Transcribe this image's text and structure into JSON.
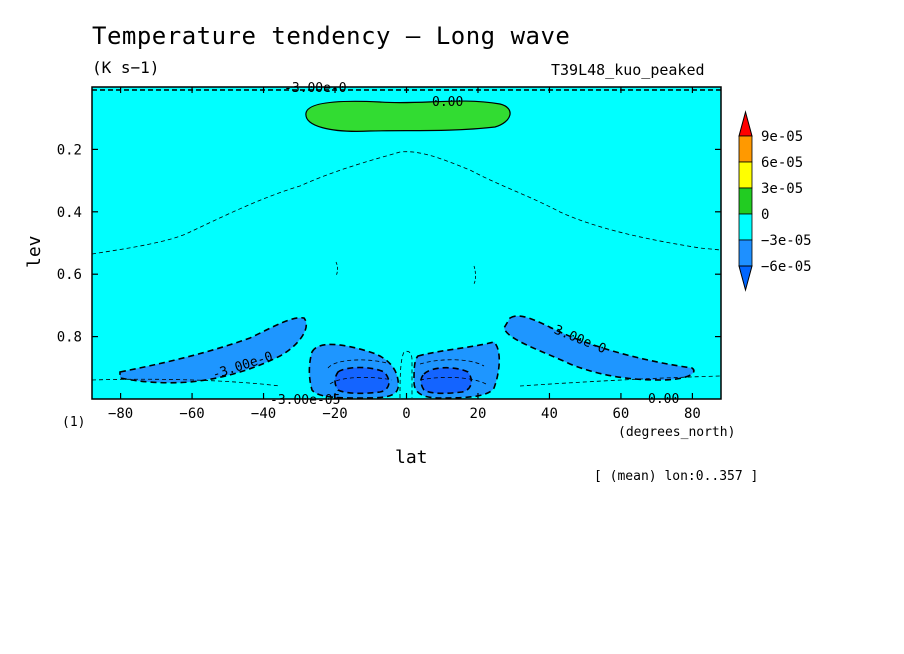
{
  "header": {
    "title": "Temperature tendency — Long wave",
    "units": "(K s−1)",
    "run": "T39L48_kuo_peaked",
    "note": "[ (mean) lon:0..357 ]"
  },
  "chart_data": {
    "type": "heatmap",
    "xlabel": "lat",
    "ylabel": "lev",
    "x_unit": "(degrees_north)",
    "y_unit": "(1)",
    "xlim": [
      -88,
      88
    ],
    "ylim": [
      1.0,
      0.0
    ],
    "x_ticks": [
      "-80",
      "-60",
      "-40",
      "-20",
      "0",
      "20",
      "40",
      "60",
      "80"
    ],
    "y_ticks": [
      "0.2",
      "0.4",
      "0.6",
      "0.8"
    ],
    "colorbar": {
      "labels": [
        "9e-05",
        "6e-05",
        "3e-05",
        "0",
        "−3e-05",
        "−6e-05"
      ],
      "colors": [
        "#ff0000",
        "#ff9900",
        "#ffff00",
        "#22cc22",
        "#00ffff",
        "#1e90ff",
        "#0066ff"
      ]
    },
    "contour_labels": [
      "-3.00e-0",
      "0.00",
      "-3.00e-0",
      "-3.00e-0",
      "0.00",
      "-3.00e-05"
    ],
    "background_colors": {
      "field": "#00ffff",
      "positive": "#32dc32",
      "negative": "#1e96ff",
      "negative_strong": "#1464ff"
    }
  }
}
